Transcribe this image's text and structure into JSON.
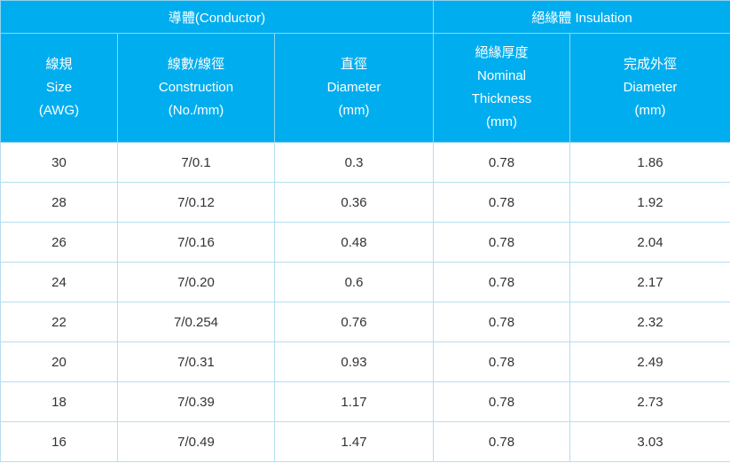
{
  "table": {
    "groups": [
      {
        "label": "導體(Conductor)"
      },
      {
        "label": "絕緣體 Insulation"
      }
    ],
    "columns": [
      {
        "lines": [
          "線規",
          "Size",
          "(AWG)"
        ]
      },
      {
        "lines": [
          "線數/線徑",
          "Construction",
          "(No./mm)"
        ]
      },
      {
        "lines": [
          "直徑",
          "Diameter",
          "(mm)"
        ]
      },
      {
        "lines": [
          "絕緣厚度",
          "Nominal",
          "Thickness",
          "(mm)"
        ]
      },
      {
        "lines": [
          "完成外徑",
          "Diameter",
          "(mm)"
        ]
      }
    ],
    "rows": [
      [
        "30",
        "7/0.1",
        "0.3",
        "0.78",
        "1.86"
      ],
      [
        "28",
        "7/0.12",
        "0.36",
        "0.78",
        "1.92"
      ],
      [
        "26",
        "7/0.16",
        "0.48",
        "0.78",
        "2.04"
      ],
      [
        "24",
        "7/0.20",
        "0.6",
        "0.78",
        "2.17"
      ],
      [
        "22",
        "7/0.254",
        "0.76",
        "0.78",
        "2.32"
      ],
      [
        "20",
        "7/0.31",
        "0.93",
        "0.78",
        "2.49"
      ],
      [
        "18",
        "7/0.39",
        "1.17",
        "0.78",
        "2.73"
      ],
      [
        "16",
        "7/0.49",
        "1.47",
        "0.78",
        "3.03"
      ]
    ]
  },
  "colors": {
    "header_bg": "#00aeef",
    "border": "#b5dff0",
    "text": "#333333"
  }
}
